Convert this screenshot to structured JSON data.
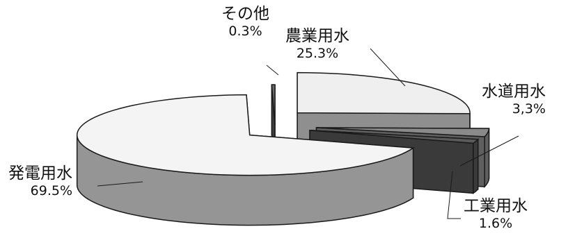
{
  "chart_data": {
    "type": "pie",
    "style": "3d-exploded",
    "slices": [
      {
        "label": "農業用水",
        "value": 25.3,
        "value_label": "25.3%",
        "color": "#efefef",
        "side_color": "#8f8f8f"
      },
      {
        "label": "水道用水",
        "value": 3.3,
        "value_label": "3,3%",
        "color": "#8a8a8a",
        "side_color": "#5f5f5f"
      },
      {
        "label": "工業用水",
        "value": 1.6,
        "value_label": "1.6%",
        "color": "#5a5a5a",
        "side_color": "#3a3a3a"
      },
      {
        "label": "発電用水",
        "value": 69.5,
        "value_label": "69.5%",
        "color": "#f4f4f4",
        "side_color": "#959595"
      },
      {
        "label": "その他",
        "value": 0.3,
        "value_label": "0.3%",
        "color": "#6a6a6a",
        "side_color": "#3f3f3f"
      }
    ]
  }
}
